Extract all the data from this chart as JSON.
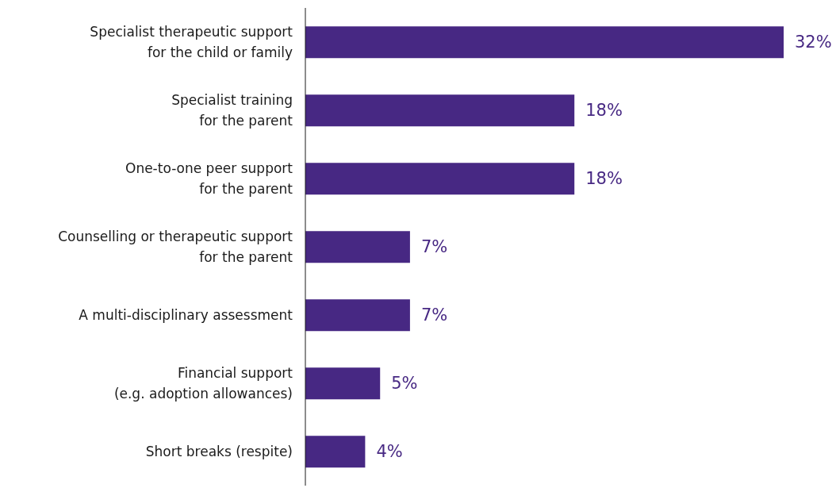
{
  "chart_data": {
    "type": "bar",
    "orientation": "horizontal",
    "categories": [
      "Specialist therapeutic support\nfor the child or family",
      "Specialist training\nfor the parent",
      "One-to-one peer support\nfor the parent",
      "Counselling or therapeutic support\nfor the parent",
      "A multi-disciplinary assessment",
      "Financial support\n(e.g. adoption allowances)",
      "Short breaks (respite)"
    ],
    "values": [
      32,
      18,
      18,
      7,
      7,
      5,
      4
    ],
    "value_labels": [
      "32%",
      "18%",
      "18%",
      "7%",
      "7%",
      "5%",
      "4%"
    ],
    "color": "#472883",
    "grid": false,
    "legend": false
  }
}
